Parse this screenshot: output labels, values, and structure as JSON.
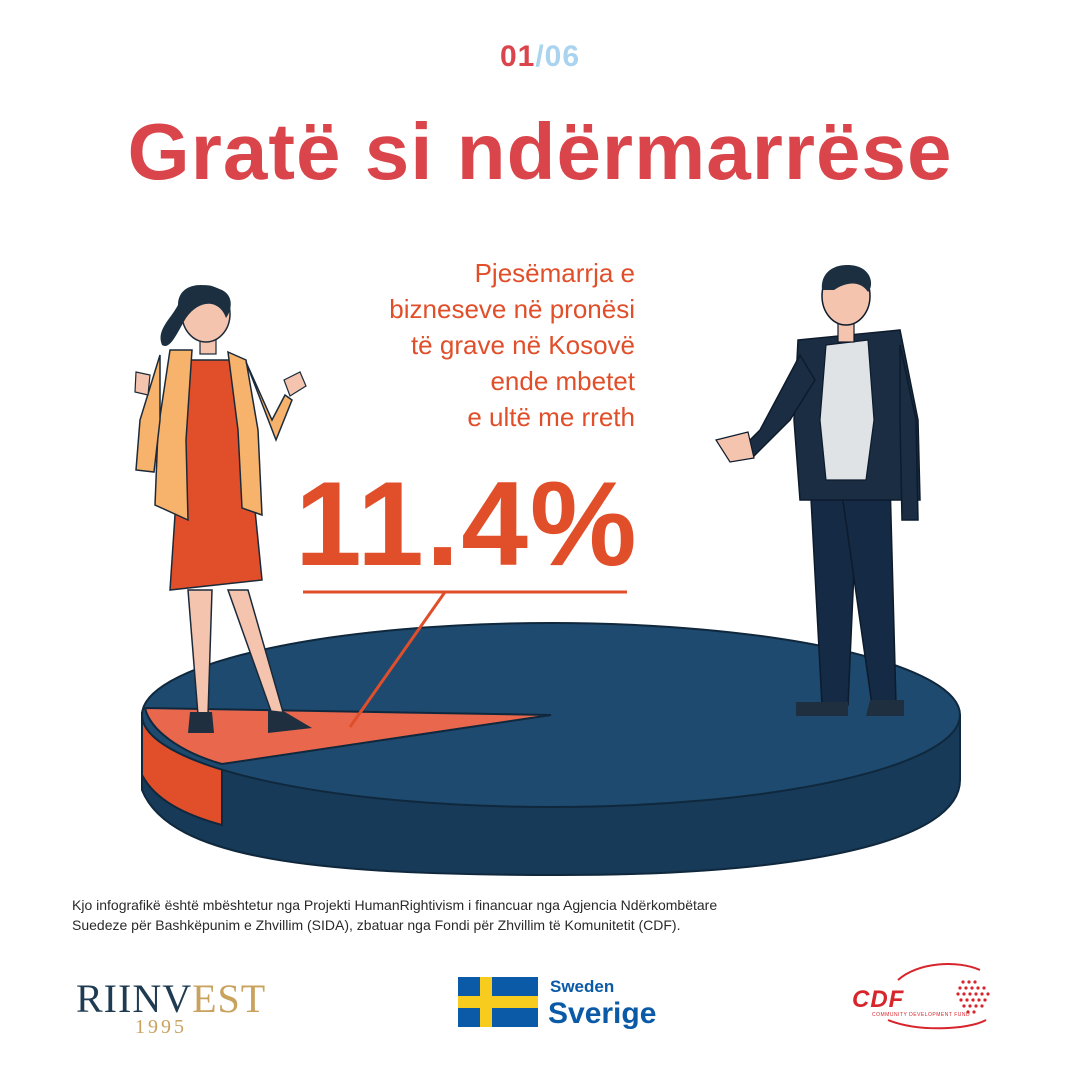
{
  "pager": {
    "current": "01",
    "separator": "/",
    "total": "06"
  },
  "title": "Gratë si ndërmarrëse",
  "statement_lines": [
    "Pjesëmarrja e",
    "bizneseve në pronësi",
    "të grave në Kosovë",
    "ende mbetet",
    "e ultë me rreth"
  ],
  "highlight": "11.4%",
  "chart_data": {
    "type": "pie",
    "labels": [
      "",
      ""
    ],
    "values": [
      11.4,
      88.6
    ],
    "data_labels": [
      "11.4%",
      ""
    ],
    "colors": [
      "#e8674d",
      "#1d4a6e"
    ],
    "side_colors": [
      "#e04f2a",
      "#163a58"
    ],
    "legend": "none"
  },
  "footnote_lines": [
    "Kjo infografikë  është mbështetur nga Projekti HumanRightivism i financuar nga Agjencia Ndërkombëtare",
    "Suedeze për Bashkëpunim e Zhvillim (SIDA), zbatuar nga Fondi për Zhvillim të Komunitetit (CDF)."
  ],
  "logos": {
    "riinvest_a": "RIINV",
    "riinvest_b": "EST",
    "riinvest_year": "1995",
    "sweden_en": "Sweden",
    "sweden_sv": "Sverige",
    "cdf": "CDF",
    "cdf_sub": "COMMUNITY DEVELOPMENT FUND"
  },
  "icons": [
    "woman-figure-icon",
    "man-figure-icon",
    "sweden-flag-icon",
    "kosovo-map-icon"
  ]
}
